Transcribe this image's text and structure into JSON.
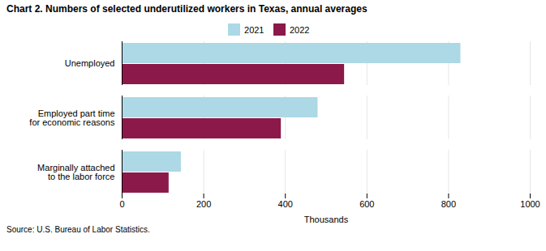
{
  "chart_data": {
    "type": "bar",
    "orientation": "horizontal",
    "title": "Chart 2.  Numbers of selected underutilized workers in Texas, annual averages",
    "categories": [
      "Unemployed",
      "Employed part time\nfor economic reasons",
      "Marginally attached\nto the labor force"
    ],
    "series": [
      {
        "name": "2021",
        "color": "#add8e6",
        "values": [
          830,
          480,
          145
        ]
      },
      {
        "name": "2022",
        "color": "#8b1a4a",
        "values": [
          545,
          390,
          115
        ]
      }
    ],
    "xlim": [
      0,
      1000
    ],
    "xticks": [
      0,
      200,
      400,
      600,
      800,
      1000
    ],
    "xlabel": "Thousands",
    "grid": true,
    "legend": "top",
    "caption": "Source: U.S. Bureau of Labor Statistics."
  }
}
